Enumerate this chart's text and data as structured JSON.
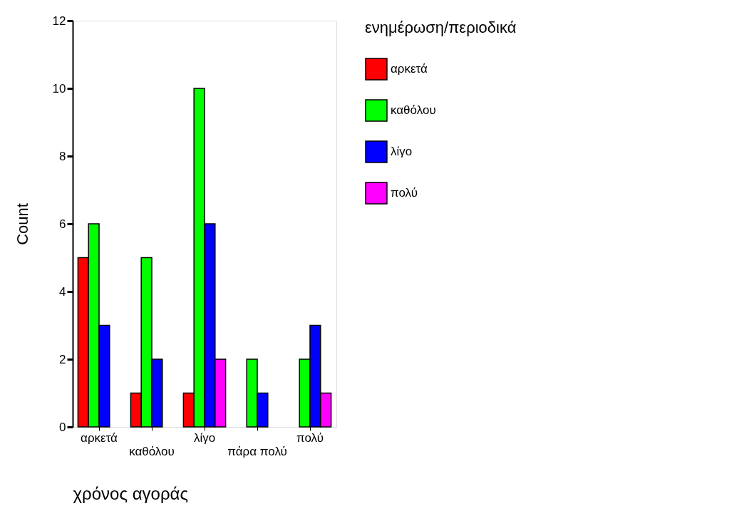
{
  "chart_data": {
    "type": "bar",
    "xlabel": "χρόνος αγοράς",
    "ylabel": "Count",
    "legend_title": "ενημέρωση/περιοδικά",
    "categories": [
      "αρκετά",
      "καθόλου",
      "λίγο",
      "πάρα πολύ",
      "πολύ"
    ],
    "series": [
      {
        "name": "αρκετά",
        "color": "#ff0000",
        "values": [
          5,
          1,
          1,
          null,
          null
        ]
      },
      {
        "name": "καθόλου",
        "color": "#00ff00",
        "values": [
          6,
          5,
          10,
          2,
          2
        ]
      },
      {
        "name": "λίγο",
        "color": "#0000ff",
        "values": [
          3,
          2,
          6,
          1,
          3
        ]
      },
      {
        "name": "πολύ",
        "color": "#ff00ff",
        "values": [
          null,
          null,
          2,
          null,
          1
        ]
      }
    ],
    "ylim": [
      0,
      12
    ],
    "yticks": [
      0,
      2,
      4,
      6,
      8,
      10,
      12
    ],
    "grid": false,
    "legend": "right"
  }
}
